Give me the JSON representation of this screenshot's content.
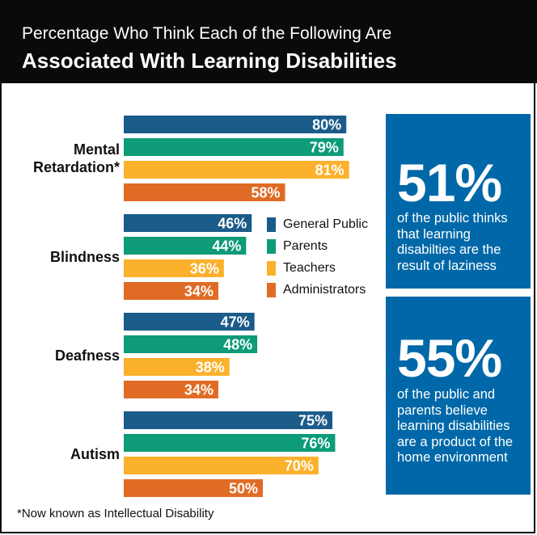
{
  "header": {
    "title_line1": "Percentage Who Think Each of the Following Are",
    "title_line2": "Associated With Learning Disabilities"
  },
  "callouts": [
    {
      "value": "51%",
      "text": "of the public thinks that learning disabilties are the result of laziness"
    },
    {
      "value": "55%",
      "text": "of the public and parents believe learning disabilities are a product of the home environment"
    }
  ],
  "footnote": "*Now known as Intellectual Disability",
  "colors": {
    "General Public": "#1b5b8a",
    "Parents": "#0d9b78",
    "Teachers": "#fbb12b",
    "Administrators": "#e06b25",
    "callout_bg": "#0068a8"
  },
  "chart_data": {
    "type": "bar",
    "orientation": "horizontal",
    "categories": [
      "Mental Retardation*",
      "Blindness",
      "Deafness",
      "Autism"
    ],
    "category_labels": [
      [
        "Mental",
        "Retardation*"
      ],
      [
        "Blindness"
      ],
      [
        "Deafness"
      ],
      [
        "Autism"
      ]
    ],
    "series": [
      {
        "name": "General Public",
        "values": [
          80,
          46,
          47,
          75
        ]
      },
      {
        "name": "Parents",
        "values": [
          79,
          44,
          48,
          76
        ]
      },
      {
        "name": "Teachers",
        "values": [
          81,
          36,
          38,
          70
        ]
      },
      {
        "name": "Administrators",
        "values": [
          58,
          34,
          34,
          50
        ]
      }
    ],
    "value_suffix": "%",
    "xlim": [
      0,
      100
    ],
    "legend_position": "middle-right",
    "grid": false
  }
}
